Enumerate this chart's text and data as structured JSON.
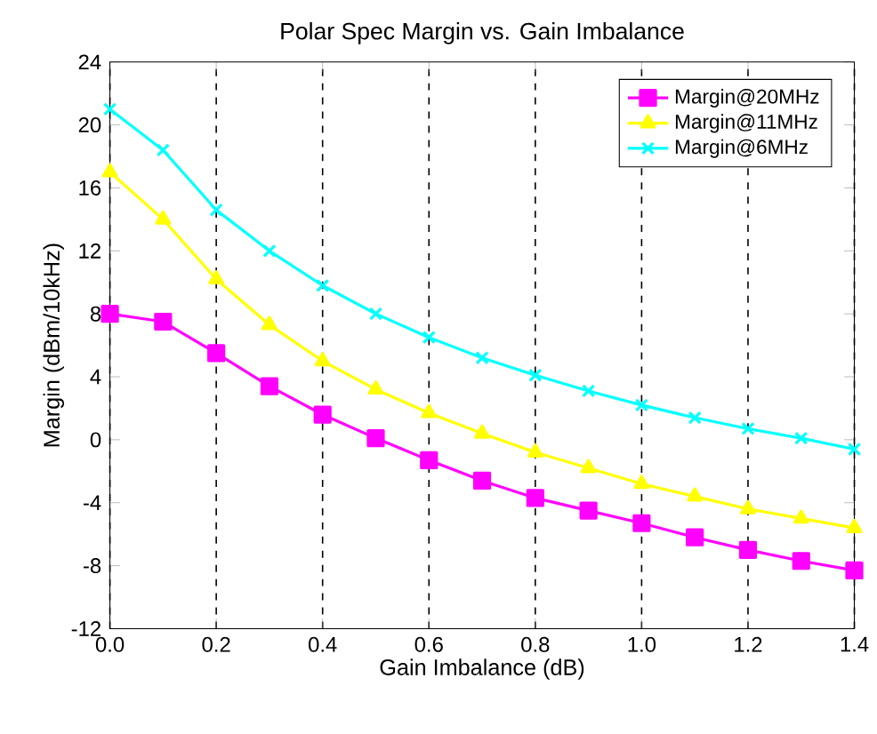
{
  "chart_data": {
    "type": "line",
    "title": "Polar Spec Margin vs. Gain Imbalance",
    "xlabel": "Gain Imbalance (dB)",
    "ylabel": "Margin (dBm/10kHz)",
    "x": [
      0,
      0.1,
      0.2,
      0.3,
      0.4,
      0.5,
      0.6,
      0.7,
      0.8,
      0.9,
      1.0,
      1.1,
      1.2,
      1.3,
      1.4
    ],
    "series": [
      {
        "name": "Margin@20MHz",
        "color": "#ff00ff",
        "marker": "square",
        "values": [
          8,
          7.5,
          5.5,
          3.4,
          1.6,
          0.1,
          -1.3,
          -2.6,
          -3.7,
          -4.5,
          -5.3,
          -6.2,
          -7.0,
          -7.7,
          -8.3
        ]
      },
      {
        "name": "Margin@11MHz",
        "color": "#ffff00",
        "marker": "triangle",
        "values": [
          17,
          14,
          10.2,
          7.3,
          5.0,
          3.2,
          1.7,
          0.4,
          -0.8,
          -1.8,
          -2.8,
          -3.6,
          -4.4,
          -5.0,
          -5.6
        ]
      },
      {
        "name": "Margin@6MHz",
        "color": "#00ffff",
        "marker": "cross",
        "values": [
          21,
          18.4,
          14.6,
          12.0,
          9.8,
          8.0,
          6.5,
          5.2,
          4.1,
          3.1,
          2.2,
          1.4,
          0.7,
          0.1,
          -0.6
        ]
      }
    ],
    "xlim": [
      0,
      1.4
    ],
    "ylim": [
      -12,
      24
    ],
    "xticks": [
      {
        "value": 0,
        "label": "0.0"
      },
      {
        "value": 0.2,
        "label": "0.2"
      },
      {
        "value": 0.4,
        "label": "0.4"
      },
      {
        "value": 0.6,
        "label": "0.6"
      },
      {
        "value": 0.8,
        "label": "0.8"
      },
      {
        "value": 1.0,
        "label": "1.0"
      },
      {
        "value": 1.2,
        "label": "1.2"
      },
      {
        "value": 1.4,
        "label": "1.4"
      }
    ],
    "yticks": [
      -12,
      -8,
      -4,
      0,
      4,
      8,
      12,
      16,
      20,
      24
    ],
    "grid": "x",
    "legend": "top right",
    "line_style": "solid"
  }
}
